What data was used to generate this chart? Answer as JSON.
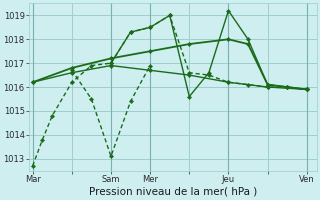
{
  "bg_color": "#ceeef0",
  "grid_color": "#9ecece",
  "line_color": "#1a6b1a",
  "marker_color": "#1a6b1a",
  "xlabel": "Pression niveau de la mer( hPa )",
  "ylim": [
    1012.5,
    1019.5
  ],
  "yticks": [
    1013,
    1014,
    1015,
    1016,
    1017,
    1018,
    1019
  ],
  "xtick_labels": [
    "Mar",
    "",
    "Sam",
    "Mer",
    "",
    "Jeu",
    "",
    "Ven"
  ],
  "xtick_positions": [
    0,
    2,
    4,
    6,
    8,
    10,
    12,
    14
  ],
  "day_vlines": [
    0,
    4,
    6,
    10,
    14
  ],
  "xlim": [
    -0.2,
    14.5
  ],
  "series": [
    {
      "x": [
        0,
        0.5,
        1,
        2,
        3,
        4,
        5,
        6,
        7,
        8,
        9,
        10,
        11,
        12,
        13,
        14
      ],
      "y": [
        1012.7,
        1013.8,
        1014.8,
        1016.2,
        1016.9,
        1017.0,
        1018.3,
        1018.5,
        1019.0,
        1016.6,
        1016.5,
        1016.2,
        1016.1,
        1016.0,
        1016.0,
        1015.9
      ],
      "style": "dotted",
      "lw": 1.0,
      "marker": true
    },
    {
      "x": [
        0,
        2,
        4,
        6,
        8,
        10,
        12,
        14
      ],
      "y": [
        1016.2,
        1016.6,
        1016.9,
        1016.7,
        1016.5,
        1016.2,
        1016.0,
        1015.9
      ],
      "style": "solid",
      "lw": 1.0,
      "marker": true
    },
    {
      "x": [
        4,
        5,
        6,
        7,
        8,
        9,
        10,
        11,
        12,
        13,
        14
      ],
      "y": [
        1017.0,
        1018.3,
        1018.5,
        1019.0,
        1015.6,
        1016.6,
        1019.2,
        1018.0,
        1016.1,
        1016.0,
        1015.9
      ],
      "style": "solid",
      "lw": 1.0,
      "marker": true
    },
    {
      "x": [
        0,
        2,
        4,
        6,
        8,
        10,
        11,
        12,
        13,
        14
      ],
      "y": [
        1016.2,
        1016.8,
        1017.2,
        1017.5,
        1017.8,
        1018.0,
        1017.8,
        1016.1,
        1016.0,
        1015.9
      ],
      "style": "solid",
      "lw": 1.3,
      "marker": true
    },
    {
      "x": [
        2,
        3,
        4,
        5,
        6
      ],
      "y": [
        1016.7,
        1015.5,
        1013.1,
        1015.4,
        1016.9
      ],
      "style": "dotted",
      "lw": 1.0,
      "marker": true
    }
  ]
}
